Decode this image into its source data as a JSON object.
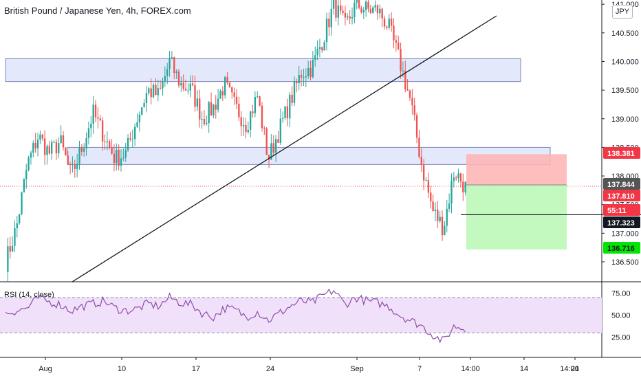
{
  "header": {
    "title": "British Pound / Japanese Yen, 4h, FOREX.com",
    "currency": "JPY"
  },
  "rsi": {
    "label": "RSI (14, close)",
    "ticks": [
      "75.00",
      "50.00",
      "25.00"
    ],
    "overbought": 70,
    "oversold": 30,
    "line_color": "#8e4ea8",
    "band_color": "#f0e0fa"
  },
  "colors": {
    "up": "#26a69a",
    "down": "#ef5350",
    "zone_fill": "#e3e8fb",
    "zone_border": "#7b85b8",
    "stop_zone": "#ffb3b3",
    "target_zone": "#b9f7b3",
    "last_price_line": "#ef5350"
  },
  "price_labels": {
    "stop": {
      "text": "138.381",
      "color": "#f23645"
    },
    "last": {
      "text": "137.844",
      "color": "#555555"
    },
    "current": {
      "text": "137.810",
      "color": "#f23645"
    },
    "countdown": {
      "text": "55:11",
      "color": "#f23645"
    },
    "line": {
      "text": "137.323",
      "color": "#131722"
    },
    "target": {
      "text": "136.716",
      "color": "#00e600"
    }
  },
  "chart_data": {
    "type": "candlestick",
    "title": "British Pound / Japanese Yen, 4h, FOREX.com",
    "ylabel": "JPY",
    "ylim": [
      136.2,
      141.05
    ],
    "y_ticks": [
      "141.000",
      "140.500",
      "140.000",
      "139.500",
      "139.000",
      "138.500",
      "138.000",
      "137.500",
      "137.000",
      "136.500"
    ],
    "x_ticks": [
      "Aug",
      "10",
      "17",
      "24",
      "Sep",
      "7",
      "14:00",
      "14",
      "21",
      "14:00"
    ],
    "price_path_close": [
      136.5,
      137.1,
      138.2,
      138.7,
      138.4,
      138.6,
      138.0,
      138.5,
      139.1,
      138.7,
      138.3,
      138.4,
      139.0,
      139.5,
      139.4,
      140.0,
      139.6,
      139.5,
      139.0,
      139.2,
      139.6,
      139.2,
      138.9,
      139.4,
      138.3,
      138.8,
      139.3,
      139.8,
      139.9,
      140.4,
      141.0,
      140.6,
      141.0,
      140.9,
      140.9,
      140.6,
      140.0,
      139.3,
      138.2,
      137.4,
      137.1,
      138.1,
      137.8
    ],
    "series": [
      {
        "name": "RSI (14, close)",
        "values": [
          52,
          55,
          58,
          70,
          65,
          62,
          55,
          60,
          63,
          66,
          58,
          55,
          57,
          63,
          60,
          70,
          64,
          62,
          52,
          48,
          58,
          56,
          48,
          54,
          44,
          52,
          60,
          66,
          64,
          72,
          78,
          62,
          70,
          66,
          64,
          60,
          50,
          44,
          38,
          28,
          20,
          38,
          34
        ]
      }
    ],
    "zones": [
      {
        "name": "resistance",
        "from": 139.65,
        "to": 140.05
      },
      {
        "name": "support",
        "from": 138.2,
        "to": 138.5
      }
    ],
    "position": {
      "entry": 137.844,
      "stop": 138.381,
      "target": 136.716
    },
    "horizontal_line": 137.323
  }
}
